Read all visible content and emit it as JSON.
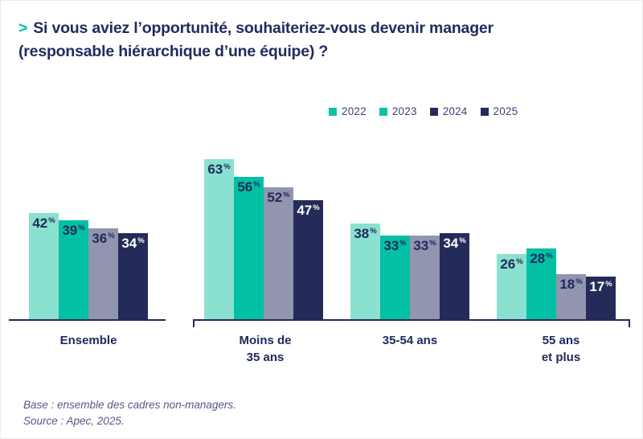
{
  "header": {
    "marker": ">",
    "title_line1": "Si vous aviez l’opportunité, souhaiteriez-vous devenir manager",
    "title_line2": "(responsable hiérarchique d’une équipe) ?"
  },
  "chart_data": {
    "type": "bar",
    "title": "Si vous aviez l’opportunité, souhaiteriez-vous devenir manager (responsable hiérarchique d’une équipe) ?",
    "unit": "%",
    "categories": [
      "Ensemble",
      "Moins de 35 ans",
      "35-54 ans",
      "55 ans et plus"
    ],
    "category_label_lines": [
      [
        "Ensemble"
      ],
      [
        "Moins de",
        "35 ans"
      ],
      [
        "35-54 ans"
      ],
      [
        "55 ans",
        "et plus"
      ]
    ],
    "series": [
      {
        "name": "2022",
        "values": [
          42,
          63,
          38,
          26
        ],
        "bar_color": "#8be1cf",
        "legend_color": "#10c0a2",
        "label_color": "#202a5b"
      },
      {
        "name": "2023",
        "values": [
          39,
          56,
          33,
          28
        ],
        "bar_color": "#02c0a3",
        "legend_color": "#10c0a2",
        "label_color": "#202a5b"
      },
      {
        "name": "2024",
        "values": [
          36,
          52,
          33,
          18
        ],
        "bar_color": "#9195af",
        "legend_color": "#242b59",
        "label_color": "#202a5b"
      },
      {
        "name": "2025",
        "values": [
          34,
          47,
          34,
          17
        ],
        "bar_color": "#242b59",
        "legend_color": "#242b59",
        "label_color": "#ffffff"
      }
    ],
    "ylim": [
      0,
      66
    ],
    "grid": false,
    "legend_position": "top-center",
    "axis_groups": [
      "Ensemble",
      "Moins de 35 ans + 35-54 ans + 55 ans et plus"
    ]
  },
  "footer": {
    "base_note": "Base : ensemble des cadres non-managers.",
    "source_note": "Source : Apec, 2025."
  },
  "colors": {
    "accent_teal": "#00bfa4",
    "navy": "#232b5e",
    "axis": "#232a58",
    "footer_text": "#545a87"
  }
}
